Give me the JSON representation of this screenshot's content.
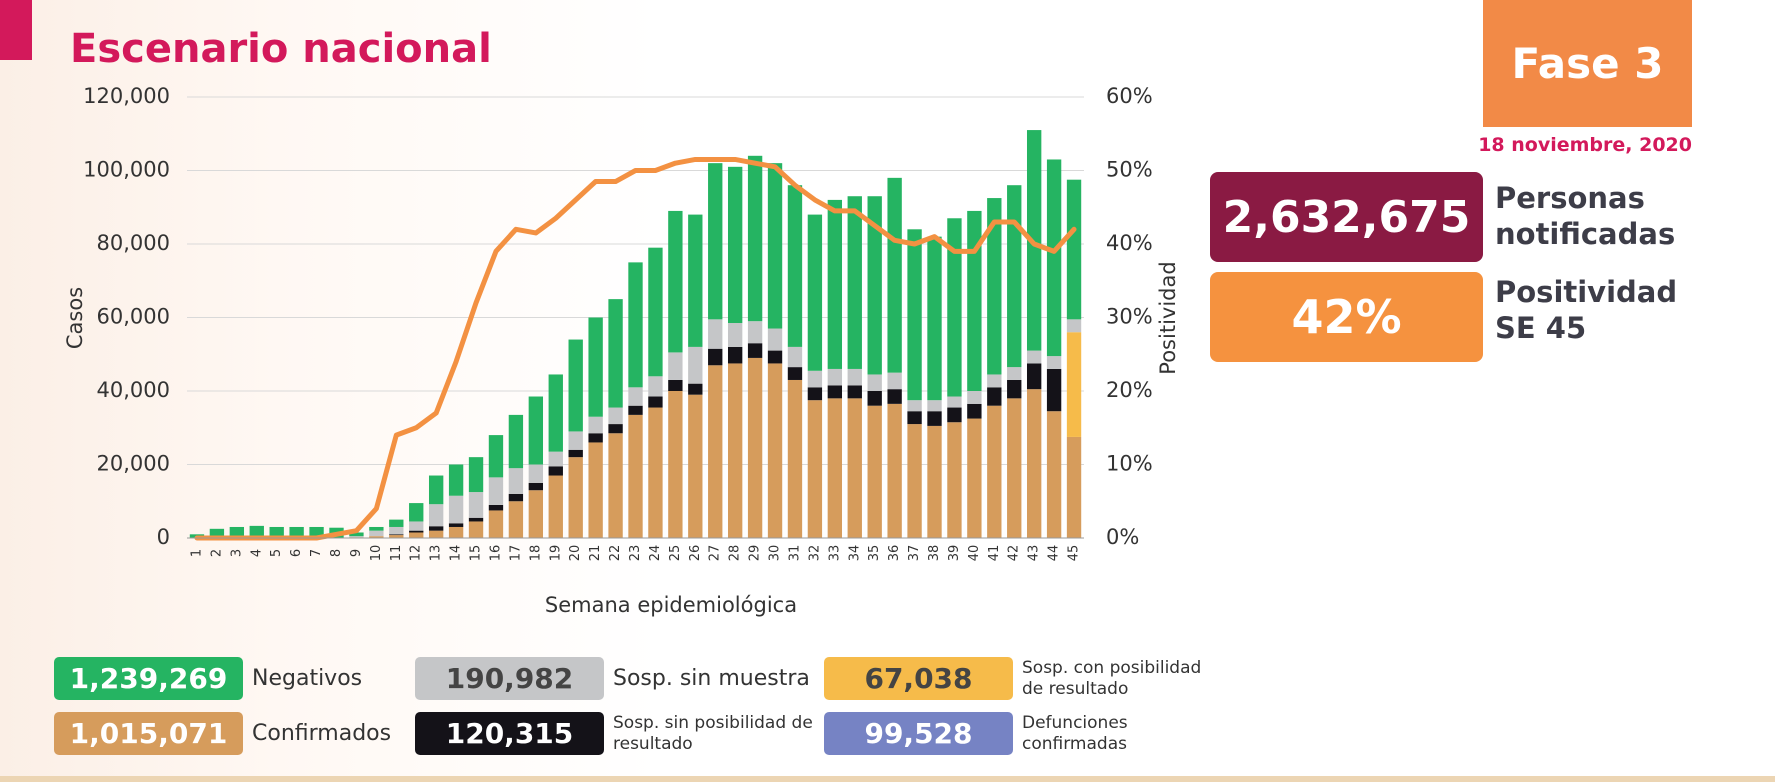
{
  "title": "Escenario nacional",
  "phase": "Fase 3",
  "date": "18 noviembre, 2020",
  "notified": {
    "value": "2,632,675",
    "label": "Personas notificadas"
  },
  "positivity": {
    "value": "42%",
    "label": "Positividad SE 45"
  },
  "chart_data": {
    "type": "bar",
    "stacked": true,
    "x_label": "Semana epidemiológica",
    "y_label": "Casos",
    "y2_label": "Positividad",
    "categories": [
      "1",
      "2",
      "3",
      "4",
      "5",
      "6",
      "7",
      "8",
      "9",
      "10",
      "11",
      "12",
      "13",
      "14",
      "15",
      "16",
      "17",
      "18",
      "19",
      "20",
      "21",
      "22",
      "23",
      "24",
      "25",
      "26",
      "27",
      "28",
      "29",
      "30",
      "31",
      "32",
      "33",
      "34",
      "35",
      "36",
      "37",
      "38",
      "39",
      "40",
      "41",
      "42",
      "43",
      "44",
      "45"
    ],
    "ylim": [
      0,
      120000
    ],
    "yticks": [
      0,
      {
        "value": 20000,
        "label": "20,000"
      },
      {
        "value": 40000,
        "label": "40,000"
      },
      {
        "value": 60000,
        "label": "60,000"
      },
      {
        "value": 80000,
        "label": "80,000"
      },
      {
        "value": 100000,
        "label": "100,000"
      },
      {
        "value": 120000,
        "label": "120,000"
      }
    ],
    "y2lim": [
      0,
      60
    ],
    "y2ticks": [
      {
        "value": 0,
        "label": "0%"
      },
      {
        "value": 10,
        "label": "10%"
      },
      {
        "value": 20,
        "label": "20%"
      },
      {
        "value": 30,
        "label": "30%"
      },
      {
        "value": 40,
        "label": "40%"
      },
      {
        "value": 50,
        "label": "50%"
      },
      {
        "value": 60,
        "label": "60%"
      }
    ],
    "grid": true,
    "series": [
      {
        "name": "Confirmados",
        "total": "1,015,071",
        "color": "#d69c5c",
        "values": [
          100,
          100,
          100,
          100,
          100,
          100,
          100,
          100,
          200,
          500,
          800,
          1500,
          2000,
          3000,
          4500,
          7500,
          10000,
          13000,
          17000,
          22000,
          26000,
          28500,
          33500,
          35500,
          40000,
          39000,
          47000,
          47500,
          49000,
          47500,
          43000,
          37500,
          38000,
          38000,
          36000,
          36500,
          31000,
          30500,
          31500,
          32500,
          36000,
          38000,
          40500,
          34500,
          27500
        ]
      },
      {
        "name": "Sosp. sin posibilidad de resultado",
        "total": "120,315",
        "color": "#141218",
        "values": [
          0,
          0,
          0,
          0,
          0,
          0,
          0,
          0,
          0,
          0,
          200,
          500,
          1200,
          1000,
          1000,
          1500,
          2000,
          2000,
          2500,
          2000,
          2500,
          2500,
          2500,
          3000,
          3000,
          3000,
          4500,
          4500,
          4000,
          3500,
          3500,
          3500,
          3500,
          3500,
          4000,
          4000,
          3500,
          4000,
          4000,
          4000,
          5000,
          5000,
          7000,
          11500,
          0
        ]
      },
      {
        "name": "Sosp. con posibilidad de resultado",
        "total": "67,038",
        "color": "#f6bb4a",
        "values": [
          0,
          0,
          0,
          0,
          0,
          0,
          0,
          0,
          0,
          0,
          0,
          0,
          0,
          0,
          0,
          0,
          0,
          0,
          0,
          0,
          0,
          0,
          0,
          0,
          0,
          0,
          0,
          0,
          0,
          0,
          0,
          0,
          0,
          0,
          0,
          0,
          0,
          0,
          0,
          0,
          0,
          0,
          0,
          0,
          28500
        ]
      },
      {
        "name": "Sosp. sin muestra",
        "total": "190,982",
        "color": "#c5c6c8",
        "values": [
          0,
          0,
          0,
          0,
          0,
          0,
          0,
          0,
          300,
          1500,
          2000,
          2500,
          6000,
          7500,
          7000,
          7500,
          7000,
          5000,
          4000,
          5000,
          4500,
          4500,
          5000,
          5500,
          7500,
          10000,
          8000,
          6500,
          6000,
          6000,
          5500,
          4500,
          4500,
          4500,
          4500,
          4500,
          3000,
          3000,
          3000,
          3500,
          3500,
          3500,
          3500,
          3500,
          3500
        ]
      },
      {
        "name": "Negativos",
        "total": "1,239,269",
        "color": "#25b462",
        "values": [
          900,
          2400,
          2900,
          3200,
          2900,
          2900,
          2900,
          2700,
          1000,
          1000,
          2000,
          5000,
          7800,
          8500,
          9500,
          11500,
          14500,
          18500,
          21000,
          25000,
          27000,
          29500,
          34000,
          35000,
          38500,
          36000,
          42500,
          42500,
          45000,
          45000,
          44000,
          42500,
          46000,
          47000,
          48500,
          53000,
          46500,
          44500,
          48500,
          49000,
          48000,
          49500,
          60000,
          53500,
          38000
        ]
      },
      {
        "type": "line",
        "axis": "y2",
        "name": "Positividad",
        "color": "#f39142",
        "values": [
          0,
          0,
          0,
          0,
          0,
          0,
          0,
          0.5,
          1,
          4,
          14,
          15,
          17,
          24,
          32,
          39,
          42,
          41.5,
          43.5,
          46,
          48.5,
          48.5,
          50,
          50,
          51,
          51.5,
          51.5,
          51.5,
          51,
          50.5,
          48,
          46,
          44.5,
          44.5,
          42.5,
          40.5,
          40,
          41,
          39,
          39,
          43,
          43,
          40,
          39,
          42
        ]
      }
    ],
    "deaths": {
      "name": "Defunciones confirmadas",
      "total": "99,528",
      "color": "#7683c4"
    }
  }
}
